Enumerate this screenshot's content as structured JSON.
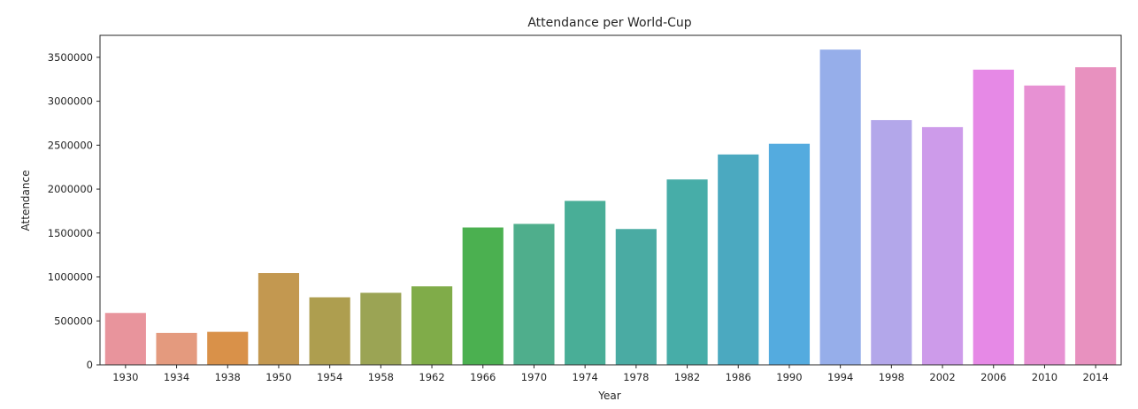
{
  "chart_data": {
    "type": "bar",
    "title": "Attendance per World-Cup",
    "xlabel": "Year",
    "ylabel": "Attendance",
    "categories": [
      "1930",
      "1934",
      "1938",
      "1950",
      "1954",
      "1958",
      "1962",
      "1966",
      "1970",
      "1974",
      "1978",
      "1982",
      "1986",
      "1990",
      "1994",
      "1998",
      "2002",
      "2006",
      "2010",
      "2014"
    ],
    "values": [
      590549,
      363000,
      375700,
      1045246,
      768607,
      819810,
      893172,
      1563135,
      1603975,
      1865753,
      1545791,
      2109723,
      2394031,
      2516215,
      3587538,
      2785100,
      2705197,
      3359439,
      3178856,
      3386810
    ],
    "colors": [
      "#e8949c",
      "#e49a7e",
      "#d99149",
      "#c39850",
      "#ae9e4f",
      "#9ba454",
      "#80ac49",
      "#4bb050",
      "#4fae8c",
      "#49ae97",
      "#4aaba3",
      "#47ada8",
      "#4ba9c0",
      "#54abdf",
      "#96aeea",
      "#b3a7ea",
      "#cd9bea",
      "#e689e6",
      "#e791d3",
      "#e891bf"
    ],
    "yticks": [
      0,
      500000,
      1000000,
      1500000,
      2000000,
      2500000,
      3000000,
      3500000
    ],
    "ylim": [
      0,
      3750000
    ],
    "grid": false,
    "legend": "none"
  }
}
